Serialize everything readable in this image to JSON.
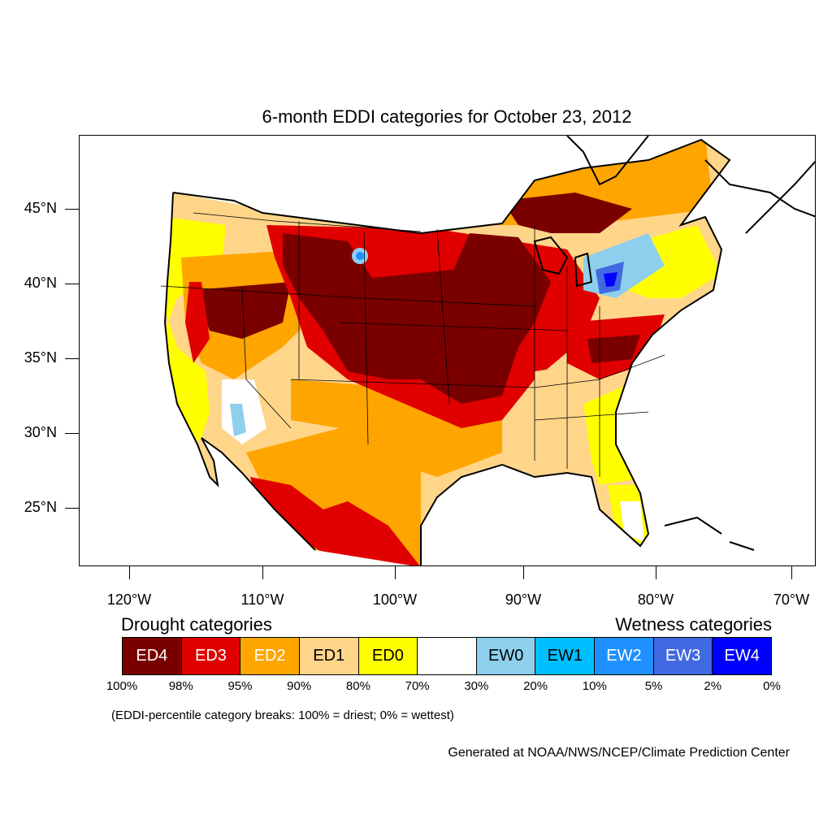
{
  "title": "6-month EDDI categories for October 23, 2012",
  "lat_labels": [
    "45°N",
    "40°N",
    "35°N",
    "30°N",
    "25°N"
  ],
  "lon_labels": [
    "120°W",
    "110°W",
    "100°W",
    "90°W",
    "80°W",
    "70°W"
  ],
  "legend": {
    "drought_heading": "Drought categories",
    "wetness_heading": "Wetness categories",
    "categories": [
      {
        "label": "ED4",
        "color": "#7a0000",
        "text_color": "#ffffff"
      },
      {
        "label": "ED3",
        "color": "#e00000",
        "text_color": "#ffffff"
      },
      {
        "label": "ED2",
        "color": "#ffa500",
        "text_color": "#ffffff"
      },
      {
        "label": "ED1",
        "color": "#ffd58a",
        "text_color": "#000000"
      },
      {
        "label": "ED0",
        "color": "#ffff00",
        "text_color": "#000000"
      },
      {
        "label": "",
        "color": "#ffffff",
        "text_color": "#000000"
      },
      {
        "label": "EW0",
        "color": "#8ecfee",
        "text_color": "#000000"
      },
      {
        "label": "EW1",
        "color": "#00bfff",
        "text_color": "#000000"
      },
      {
        "label": "EW2",
        "color": "#1e90ff",
        "text_color": "#ffffff"
      },
      {
        "label": "EW3",
        "color": "#4169e1",
        "text_color": "#ffffff"
      },
      {
        "label": "EW4",
        "color": "#0000ff",
        "text_color": "#ffffff"
      }
    ],
    "percentiles": [
      "100%",
      "98%",
      "95%",
      "90%",
      "80%",
      "70%",
      "30%",
      "20%",
      "10%",
      "5%",
      "2%",
      "0%"
    ]
  },
  "note": "(EDDI-percentile category breaks: 100% = driest; 0% = wettest)",
  "credit": "Generated at NOAA/NWS/NCEP/Climate Prediction Center"
}
